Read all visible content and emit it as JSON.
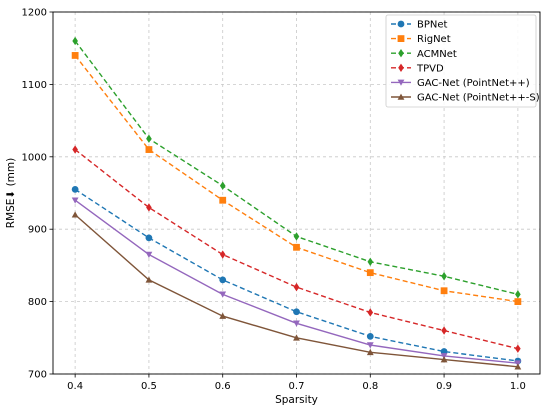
{
  "chart_data": {
    "type": "line",
    "xlabel": "Sparsity",
    "ylabel": "RMSE⬇ (mm)",
    "x": [
      0.4,
      0.5,
      0.6,
      0.7,
      0.8,
      0.9,
      1.0
    ],
    "xticks": [
      "0.4",
      "0.5",
      "0.6",
      "0.7",
      "0.8",
      "0.9",
      "1.0"
    ],
    "yticks": [
      "700",
      "800",
      "900",
      "1000",
      "1100",
      "1200"
    ],
    "xlim": [
      0.37,
      1.03
    ],
    "ylim": [
      700,
      1200
    ],
    "grid": true,
    "legend_position": "top-right",
    "series": [
      {
        "name": "BPNet",
        "color": "#1f77b4",
        "marker": "circle",
        "dash": "dashed",
        "values": [
          955,
          888,
          830,
          786,
          752,
          731,
          718
        ]
      },
      {
        "name": "RigNet",
        "color": "#ff7f0e",
        "marker": "square",
        "dash": "dashed",
        "values": [
          1140,
          1010,
          940,
          875,
          840,
          815,
          800
        ]
      },
      {
        "name": "ACMNet",
        "color": "#2ca02c",
        "marker": "diamond",
        "dash": "dashed",
        "values": [
          1160,
          1025,
          960,
          890,
          855,
          835,
          810
        ]
      },
      {
        "name": "TPVD",
        "color": "#d62728",
        "marker": "diamond",
        "dash": "dashed",
        "values": [
          1010,
          930,
          865,
          820,
          785,
          760,
          735
        ]
      },
      {
        "name": "GAC-Net (PointNet++)",
        "color": "#9467bd",
        "marker": "triangle-down",
        "dash": "solid",
        "values": [
          940,
          865,
          810,
          770,
          740,
          725,
          715
        ]
      },
      {
        "name": "GAC-Net (PointNet++-S)",
        "color": "#7f5539",
        "marker": "triangle-up",
        "dash": "solid",
        "values": [
          920,
          830,
          780,
          750,
          730,
          720,
          710
        ]
      }
    ]
  }
}
